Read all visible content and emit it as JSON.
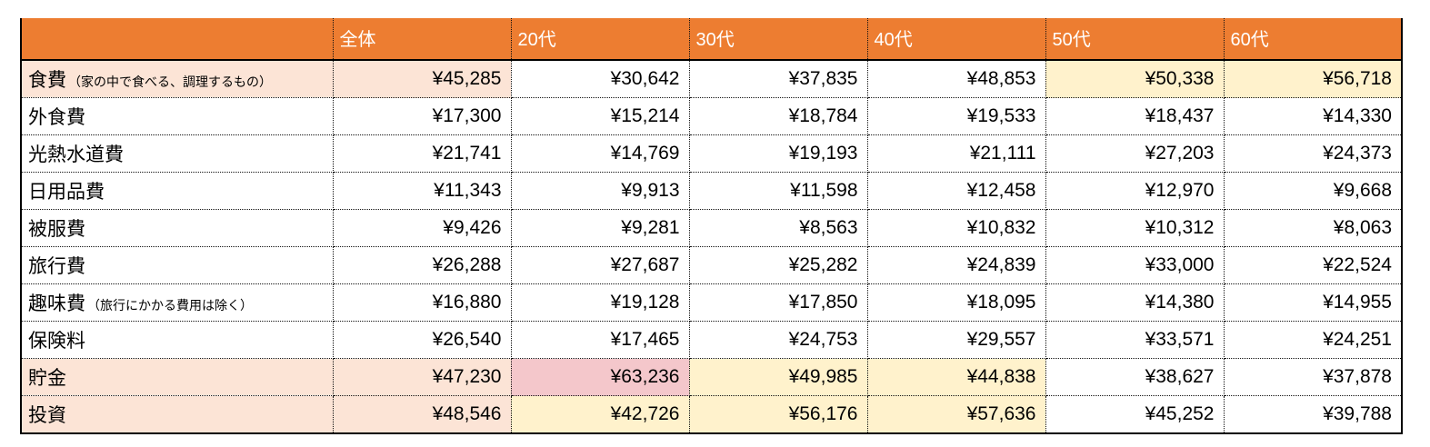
{
  "colors": {
    "header_bg": "#ED7D31",
    "header_text": "#FFFFFF",
    "peach": "#FCE4D6",
    "yellow": "#FFF2CC",
    "pink": "#F4C7CB",
    "grid": "#000000"
  },
  "table": {
    "columns": [
      "",
      "全体",
      "20代",
      "30代",
      "40代",
      "50代",
      "60代"
    ],
    "rows": [
      {
        "label": "食費",
        "note": "（家の中で食べる、調理するもの）",
        "values": [
          "¥45,285",
          "¥30,642",
          "¥37,835",
          "¥48,853",
          "¥50,338",
          "¥56,718"
        ],
        "highlights": [
          "peach",
          "peach",
          "none",
          "none",
          "none",
          "yellow",
          "yellow"
        ]
      },
      {
        "label": "外食費",
        "note": "",
        "values": [
          "¥17,300",
          "¥15,214",
          "¥18,784",
          "¥19,533",
          "¥18,437",
          "¥14,330"
        ],
        "highlights": [
          "none",
          "none",
          "none",
          "none",
          "none",
          "none",
          "none"
        ]
      },
      {
        "label": "光熱水道費",
        "note": "",
        "values": [
          "¥21,741",
          "¥14,769",
          "¥19,193",
          "¥21,111",
          "¥27,203",
          "¥24,373"
        ],
        "highlights": [
          "none",
          "none",
          "none",
          "none",
          "none",
          "none",
          "none"
        ]
      },
      {
        "label": "日用品費",
        "note": "",
        "values": [
          "¥11,343",
          "¥9,913",
          "¥11,598",
          "¥12,458",
          "¥12,970",
          "¥9,668"
        ],
        "highlights": [
          "none",
          "none",
          "none",
          "none",
          "none",
          "none",
          "none"
        ]
      },
      {
        "label": "被服費",
        "note": "",
        "values": [
          "¥9,426",
          "¥9,281",
          "¥8,563",
          "¥10,832",
          "¥10,312",
          "¥8,063"
        ],
        "highlights": [
          "none",
          "none",
          "none",
          "none",
          "none",
          "none",
          "none"
        ]
      },
      {
        "label": "旅行費",
        "note": "",
        "values": [
          "¥26,288",
          "¥27,687",
          "¥25,282",
          "¥24,839",
          "¥33,000",
          "¥22,524"
        ],
        "highlights": [
          "none",
          "none",
          "none",
          "none",
          "none",
          "none",
          "none"
        ]
      },
      {
        "label": "趣味費",
        "note": "（旅行にかかる費用は除く）",
        "values": [
          "¥16,880",
          "¥19,128",
          "¥17,850",
          "¥18,095",
          "¥14,380",
          "¥14,955"
        ],
        "highlights": [
          "none",
          "none",
          "none",
          "none",
          "none",
          "none",
          "none"
        ]
      },
      {
        "label": "保険料",
        "note": "",
        "values": [
          "¥26,540",
          "¥17,465",
          "¥24,753",
          "¥29,557",
          "¥33,571",
          "¥24,251"
        ],
        "highlights": [
          "none",
          "none",
          "none",
          "none",
          "none",
          "none",
          "none"
        ]
      },
      {
        "label": "貯金",
        "note": "",
        "values": [
          "¥47,230",
          "¥63,236",
          "¥49,985",
          "¥44,838",
          "¥38,627",
          "¥37,878"
        ],
        "highlights": [
          "peach",
          "peach",
          "pink",
          "yellow",
          "yellow",
          "none",
          "none"
        ]
      },
      {
        "label": "投資",
        "note": "",
        "values": [
          "¥48,546",
          "¥42,726",
          "¥56,176",
          "¥57,636",
          "¥45,252",
          "¥39,788"
        ],
        "highlights": [
          "peach",
          "peach",
          "yellow",
          "yellow",
          "yellow",
          "none",
          "none"
        ]
      }
    ]
  },
  "chart_data": {
    "type": "table",
    "unit": "JPY",
    "categories": [
      "全体",
      "20代",
      "30代",
      "40代",
      "50代",
      "60代"
    ],
    "series": [
      {
        "name": "食費（家の中で食べる、調理するもの）",
        "values": [
          45285,
          30642,
          37835,
          48853,
          50338,
          56718
        ]
      },
      {
        "name": "外食費",
        "values": [
          17300,
          15214,
          18784,
          19533,
          18437,
          14330
        ]
      },
      {
        "name": "光熱水道費",
        "values": [
          21741,
          14769,
          19193,
          21111,
          27203,
          24373
        ]
      },
      {
        "name": "日用品費",
        "values": [
          11343,
          9913,
          11598,
          12458,
          12970,
          9668
        ]
      },
      {
        "name": "被服費",
        "values": [
          9426,
          9281,
          8563,
          10832,
          10312,
          8063
        ]
      },
      {
        "name": "旅行費",
        "values": [
          26288,
          27687,
          25282,
          24839,
          33000,
          22524
        ]
      },
      {
        "name": "趣味費（旅行にかかる費用は除く）",
        "values": [
          16880,
          19128,
          17850,
          18095,
          14380,
          14955
        ]
      },
      {
        "name": "保険料",
        "values": [
          26540,
          17465,
          24753,
          29557,
          33571,
          24251
        ]
      },
      {
        "name": "貯金",
        "values": [
          47230,
          63236,
          49985,
          44838,
          38627,
          37878
        ]
      },
      {
        "name": "投資",
        "values": [
          48546,
          42726,
          56176,
          57636,
          45252,
          39788
        ]
      }
    ]
  }
}
